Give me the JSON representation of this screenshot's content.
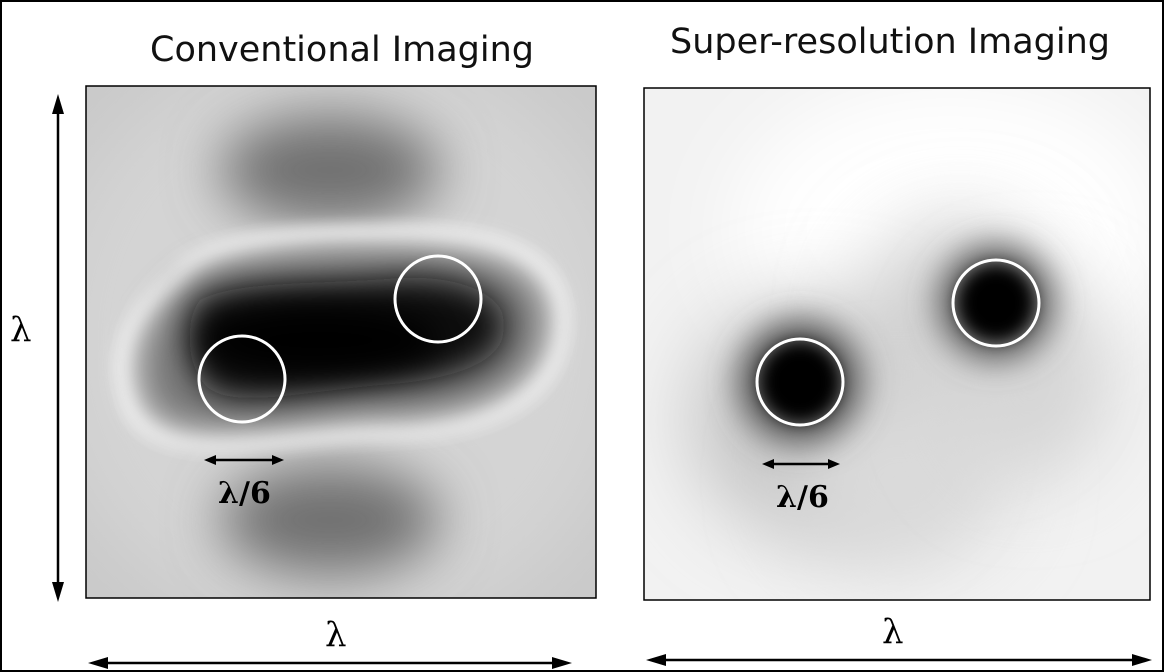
{
  "panels": [
    {
      "title": "Conventional Imaging",
      "scale_label": "λ/6"
    },
    {
      "title": "Super-resolution Imaging",
      "scale_label": "λ/6"
    }
  ],
  "axes": {
    "vertical_label": "λ",
    "horizontal_label_left": "λ",
    "horizontal_label_right": "λ"
  },
  "colors": {
    "circle": "#ffffff",
    "background": "#ffffff",
    "ink": "#000000"
  }
}
